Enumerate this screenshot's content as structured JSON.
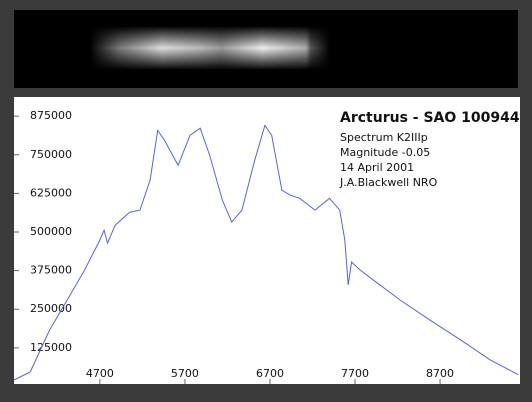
{
  "chart_data": {
    "type": "line",
    "title": "Arcturus - SAO 100944",
    "annotations": [
      "Spectrum K2IIIp",
      "Magnitude -0.05",
      "14 April 2001",
      "J.A.Blackwell NRO"
    ],
    "x": [
      3690,
      3880,
      4110,
      4350,
      4520,
      4700,
      4750,
      4790,
      4880,
      5050,
      5170,
      5290,
      5380,
      5460,
      5620,
      5760,
      5880,
      5990,
      6140,
      6250,
      6370,
      6520,
      6640,
      6720,
      6840,
      6940,
      7050,
      7230,
      7400,
      7520,
      7580,
      7620,
      7660,
      7760,
      7990,
      8230,
      8580,
      8940,
      9290,
      9620
    ],
    "series": [
      {
        "name": "Arcturus",
        "color": "#5a63d8",
        "values": [
          21000,
          47000,
          183000,
          296000,
          377000,
          474000,
          506000,
          464000,
          522000,
          564000,
          571000,
          668000,
          829000,
          797000,
          716000,
          813000,
          836000,
          749000,
          603000,
          532000,
          571000,
          732000,
          845000,
          813000,
          635000,
          619000,
          609000,
          571000,
          609000,
          571000,
          474000,
          329000,
          403000,
          377000,
          329000,
          280000,
          215000,
          151000,
          86000,
          38000
        ]
      }
    ],
    "xlim": [
      3690,
      9640
    ],
    "ylim": [
      8000,
      937000
    ],
    "xticks": [
      4700,
      5700,
      6700,
      7700,
      8700
    ],
    "yticks": [
      125000,
      250000,
      375000,
      500000,
      625000,
      750000,
      875000
    ]
  }
}
